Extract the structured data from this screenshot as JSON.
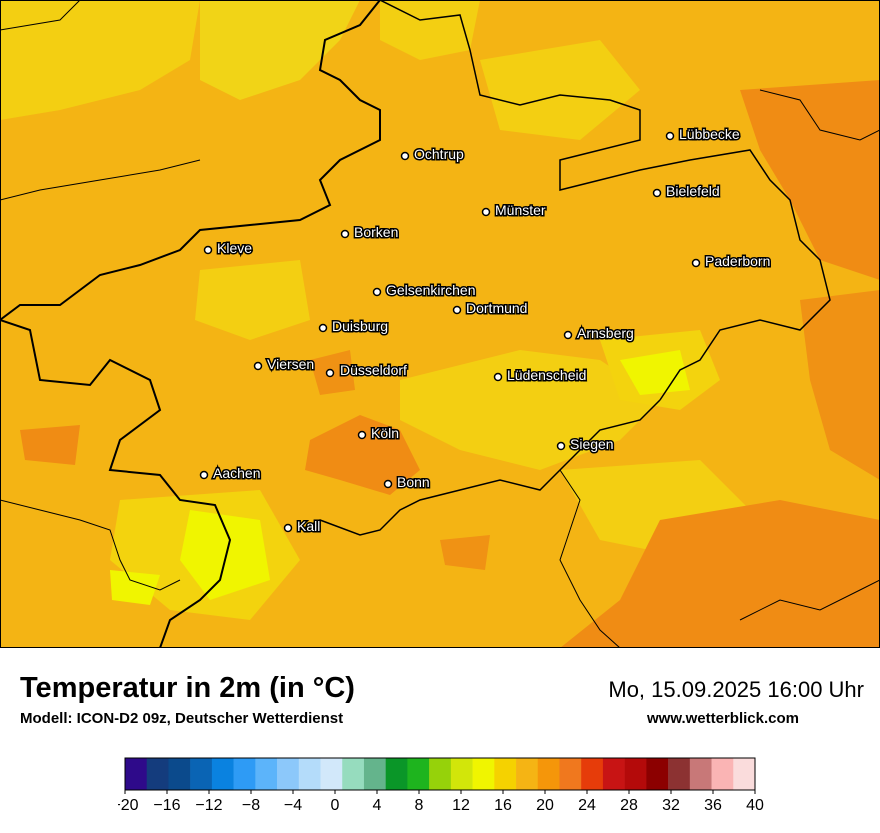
{
  "title": "Temperatur in 2m (in °C)",
  "subtitle": "Modell: ICON-D2 09z, Deutscher Wetterdienst",
  "datetime": "Mo, 15.09.2025 16:00 Uhr",
  "website": "www.wetterblick.com",
  "cities": [
    {
      "name": "Lübbecke"
    },
    {
      "name": "Ochtrup"
    },
    {
      "name": "Bielefeld"
    },
    {
      "name": "Münster"
    },
    {
      "name": "Borken"
    },
    {
      "name": "Kleve"
    },
    {
      "name": "Paderborn"
    },
    {
      "name": "Gelsenkirchen"
    },
    {
      "name": "Dortmund"
    },
    {
      "name": "Duisburg"
    },
    {
      "name": "Arnsberg"
    },
    {
      "name": "Viersen"
    },
    {
      "name": "Düsseldorf"
    },
    {
      "name": "Lüdenscheid"
    },
    {
      "name": "Köln"
    },
    {
      "name": "Siegen"
    },
    {
      "name": "Aachen"
    },
    {
      "name": "Bonn"
    },
    {
      "name": "Kall"
    }
  ],
  "legend": {
    "tick_labels": [
      "−20",
      "−16",
      "−12",
      "−8",
      "−4",
      "0",
      "4",
      "8",
      "12",
      "16",
      "20",
      "24",
      "28",
      "32",
      "36",
      "40"
    ],
    "colors": [
      "#2e0a8a",
      "#143c7d",
      "#0b4a8c",
      "#0a64b4",
      "#0a82e0",
      "#2e9bf5",
      "#5cb4fa",
      "#8cc8fa",
      "#b4dcfa",
      "#d2e8fa",
      "#96dcbe",
      "#64b48c",
      "#0a9628",
      "#1eb41e",
      "#96d20a",
      "#d2e60a",
      "#f0f500",
      "#f5d200",
      "#f5b414",
      "#f5960a",
      "#f0781e",
      "#e63c0a",
      "#c81414",
      "#b40a0a",
      "#8c0000",
      "#8c3232",
      "#c87878",
      "#fab4b4",
      "#fadcdc"
    ]
  }
}
